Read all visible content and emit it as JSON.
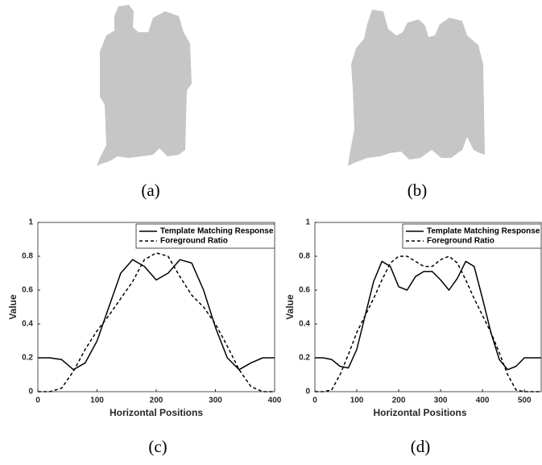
{
  "captions": [
    "(a)",
    "(b)",
    "(c)",
    "(d)"
  ],
  "chart_data": [
    {
      "type": "line",
      "xlabel": "Horizontal Positions",
      "ylabel": "Value",
      "x": [
        0,
        20,
        40,
        60,
        80,
        100,
        120,
        140,
        160,
        180,
        200,
        220,
        240,
        260,
        280,
        300,
        320,
        340,
        360,
        380,
        400
      ],
      "series": [
        {
          "name": "Template Matching Response",
          "color": "#000000",
          "linestyle": "solid",
          "values": [
            0.2,
            0.2,
            0.19,
            0.13,
            0.17,
            0.3,
            0.5,
            0.7,
            0.78,
            0.74,
            0.66,
            0.7,
            0.78,
            0.76,
            0.6,
            0.38,
            0.2,
            0.13,
            0.17,
            0.2,
            0.2
          ]
        },
        {
          "name": "Foreground Ratio",
          "color": "#000000",
          "linestyle": "dashed",
          "values": [
            0,
            0,
            0.02,
            0.12,
            0.25,
            0.36,
            0.45,
            0.55,
            0.65,
            0.78,
            0.82,
            0.8,
            0.68,
            0.57,
            0.5,
            0.4,
            0.27,
            0.13,
            0.03,
            0,
            0
          ]
        }
      ],
      "xlim": [
        0,
        400
      ],
      "ylim": [
        0,
        1
      ],
      "xticks": [
        0,
        100,
        200,
        300,
        400
      ],
      "yticks": [
        0,
        0.2,
        0.4,
        0.6,
        0.8,
        1
      ],
      "legend": "upper right"
    },
    {
      "type": "line",
      "xlabel": "Horizontal Positions",
      "ylabel": "Value",
      "x": [
        0,
        20,
        40,
        60,
        80,
        100,
        120,
        140,
        160,
        180,
        200,
        220,
        240,
        260,
        280,
        300,
        320,
        340,
        360,
        380,
        400,
        420,
        440,
        460,
        480,
        500,
        520,
        540
      ],
      "series": [
        {
          "name": "Template Matching Response",
          "color": "#000000",
          "linestyle": "solid",
          "values": [
            0.2,
            0.2,
            0.19,
            0.15,
            0.14,
            0.25,
            0.45,
            0.65,
            0.77,
            0.74,
            0.62,
            0.6,
            0.68,
            0.71,
            0.71,
            0.66,
            0.6,
            0.67,
            0.77,
            0.74,
            0.55,
            0.35,
            0.19,
            0.13,
            0.15,
            0.2,
            0.2,
            0.2
          ]
        },
        {
          "name": "Foreground Ratio",
          "color": "#000000",
          "linestyle": "dashed",
          "values": [
            0,
            0,
            0.01,
            0.1,
            0.22,
            0.35,
            0.45,
            0.55,
            0.66,
            0.76,
            0.8,
            0.8,
            0.77,
            0.74,
            0.74,
            0.78,
            0.8,
            0.76,
            0.66,
            0.55,
            0.45,
            0.35,
            0.23,
            0.1,
            0.01,
            0,
            0,
            0
          ]
        }
      ],
      "xlim": [
        0,
        540
      ],
      "ylim": [
        0,
        1
      ],
      "xticks": [
        0,
        100,
        200,
        300,
        400,
        500
      ],
      "yticks": [
        0,
        0.2,
        0.4,
        0.6,
        0.8,
        1
      ],
      "legend": "upper right"
    }
  ]
}
